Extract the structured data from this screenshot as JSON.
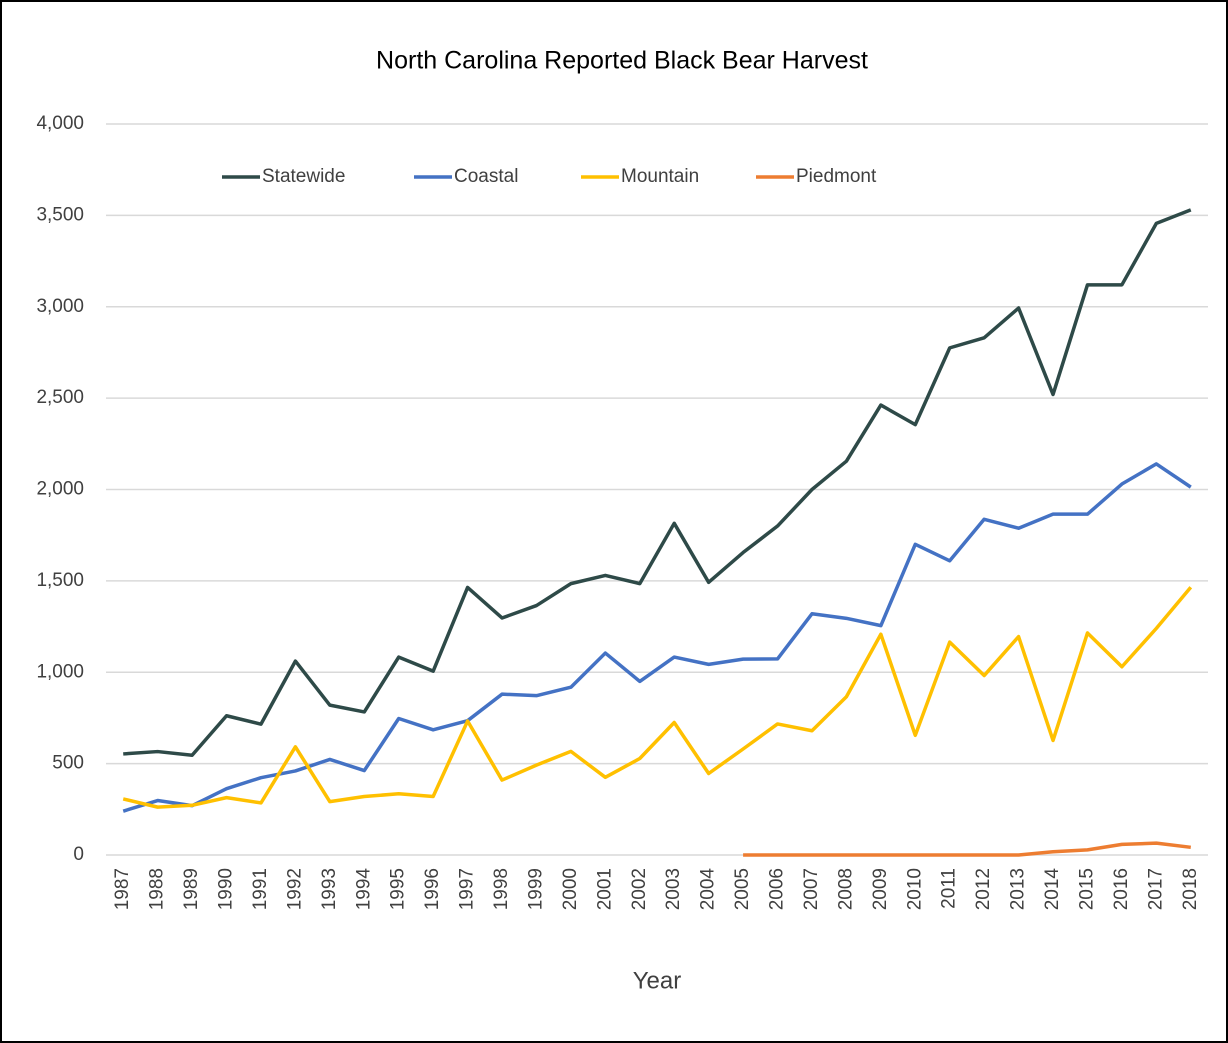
{
  "chart_data": {
    "type": "line",
    "title": "North Carolina Reported Black Bear Harvest",
    "x_label": "Year",
    "categories": [
      "1987",
      "1988",
      "1989",
      "1990",
      "1991",
      "1992",
      "1993",
      "1994",
      "1995",
      "1996",
      "1997",
      "1998",
      "1999",
      "2000",
      "2001",
      "2002",
      "2003",
      "2004",
      "2005",
      "2006",
      "2007",
      "2008",
      "2009",
      "2010",
      "2011",
      "2012",
      "2013",
      "2014",
      "2015",
      "2016",
      "2017",
      "2018"
    ],
    "series": [
      {
        "name": "Statewide",
        "color": "#2e4a48",
        "values": [
          553,
          566,
          546,
          762,
          716,
          1061,
          820,
          783,
          1083,
          1006,
          1464,
          1297,
          1365,
          1485,
          1530,
          1485,
          1815,
          1492,
          1655,
          1800,
          2000,
          2155,
          2462,
          2355,
          2775,
          2830,
          2993,
          2520,
          3120,
          3120,
          3456,
          3530
        ]
      },
      {
        "name": "Coastal",
        "color": "#4472c4",
        "values": [
          240,
          298,
          270,
          363,
          423,
          460,
          523,
          462,
          747,
          685,
          735,
          880,
          872,
          918,
          1105,
          950,
          1083,
          1043,
          1072,
          1073,
          1320,
          1295,
          1255,
          1700,
          1610,
          1837,
          1788,
          1865,
          1865,
          2030,
          2140,
          2013
        ]
      },
      {
        "name": "Mountain",
        "color": "#ffc000",
        "values": [
          307,
          262,
          272,
          314,
          285,
          592,
          292,
          320,
          335,
          320,
          733,
          410,
          492,
          567,
          425,
          528,
          725,
          446,
          580,
          717,
          680,
          866,
          1208,
          655,
          1165,
          982,
          1195,
          627,
          1215,
          1030,
          1240,
          1465
        ]
      },
      {
        "name": "Piedmont",
        "color": "#ed7d31",
        "values": [
          null,
          null,
          null,
          null,
          null,
          null,
          null,
          null,
          null,
          null,
          null,
          null,
          null,
          null,
          null,
          null,
          null,
          null,
          0,
          0,
          0,
          0,
          0,
          0,
          0,
          0,
          0,
          18,
          28,
          58,
          65,
          42
        ]
      }
    ],
    "ylim": [
      0,
      4000
    ],
    "yticks": [
      0,
      500,
      {
        "value": 1000,
        "label": "1,000"
      },
      {
        "value": 1500,
        "label": "1,500"
      },
      {
        "value": 2000,
        "label": "2,000"
      },
      {
        "value": 2500,
        "label": "2,500"
      },
      {
        "value": 3000,
        "label": "3,000"
      },
      {
        "value": 3500,
        "label": "3,500"
      },
      {
        "value": 4000,
        "label": "4,000"
      }
    ],
    "grid": true,
    "legend": "top"
  }
}
